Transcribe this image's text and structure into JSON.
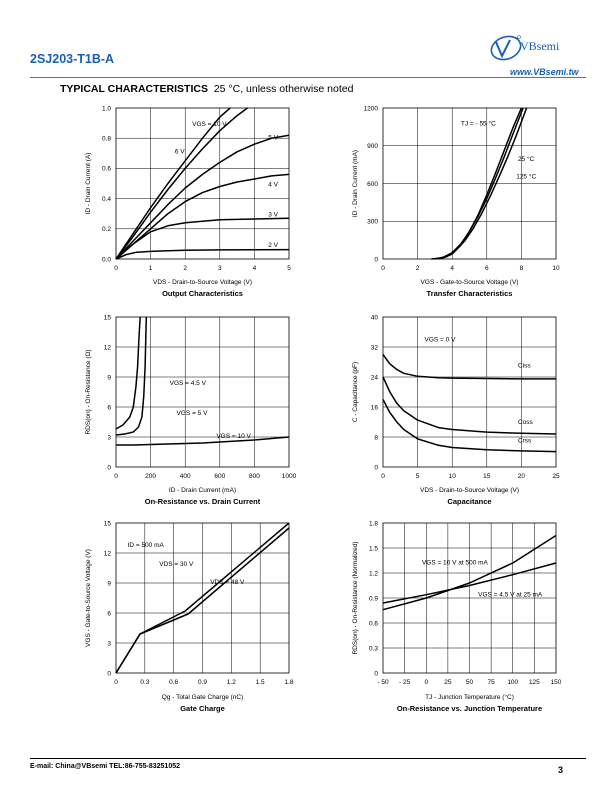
{
  "header": {
    "part_number": "2SJ203-T1B-A",
    "brand": "VBsemi",
    "website": "www.VBsemi.tw",
    "section_title": "TYPICAL CHARACTERISTICS",
    "section_note": "25 °C, unless otherwise noted"
  },
  "footer": {
    "contact": "E-mail:  China@VBsemi   TEL:86-755-83251052",
    "page_number": "3"
  },
  "chart_data": [
    {
      "id": "output",
      "type": "line",
      "title": "Output Characteristics",
      "xlabel": "VDS - Drain-to-Source Voltage (V)",
      "ylabel": "ID - Drain Current (A)",
      "xlim": [
        0,
        5
      ],
      "ylim": [
        0,
        1.0
      ],
      "xticks": [
        0,
        1,
        2,
        3,
        4,
        5
      ],
      "yticks": [
        0.0,
        0.2,
        0.4,
        0.6,
        0.8,
        1.0
      ],
      "ytick_labels": [
        "0.0",
        "0.2",
        "0.4",
        "0.6",
        "0.8",
        "1.0"
      ],
      "series": [
        {
          "name": "VGS = 10 V",
          "x": [
            0,
            0.5,
            1,
            1.5,
            2,
            2.5,
            3,
            3.3
          ],
          "y": [
            0,
            0.17,
            0.34,
            0.5,
            0.65,
            0.8,
            0.94,
            1.0
          ]
        },
        {
          "name": "6 V",
          "x": [
            0,
            0.5,
            1,
            1.5,
            2,
            2.5,
            3,
            3.5,
            3.8
          ],
          "y": [
            0,
            0.15,
            0.31,
            0.46,
            0.6,
            0.73,
            0.85,
            0.95,
            1.0
          ]
        },
        {
          "name": "5 V",
          "x": [
            0,
            0.5,
            1,
            1.5,
            2,
            2.5,
            3,
            3.5,
            4,
            4.5,
            5
          ],
          "y": [
            0,
            0.12,
            0.24,
            0.36,
            0.47,
            0.56,
            0.64,
            0.71,
            0.76,
            0.8,
            0.82
          ]
        },
        {
          "name": "4 V",
          "x": [
            0,
            0.5,
            1,
            1.5,
            2,
            2.5,
            3,
            3.5,
            4,
            4.5,
            5
          ],
          "y": [
            0,
            0.1,
            0.2,
            0.3,
            0.38,
            0.44,
            0.48,
            0.51,
            0.53,
            0.55,
            0.56
          ]
        },
        {
          "name": "3 V",
          "x": [
            0,
            0.5,
            1,
            1.5,
            2,
            2.5,
            3,
            4,
            5
          ],
          "y": [
            0,
            0.1,
            0.18,
            0.22,
            0.24,
            0.25,
            0.26,
            0.265,
            0.27
          ]
        },
        {
          "name": "2 V",
          "x": [
            0,
            0.3,
            0.6,
            1,
            1.5,
            2,
            3,
            5
          ],
          "y": [
            0,
            0.03,
            0.045,
            0.05,
            0.055,
            0.058,
            0.06,
            0.062
          ]
        }
      ],
      "annotations": [
        "VGS = 10 V",
        "6 V",
        "5 V",
        "4 V",
        "3 V",
        "2 V"
      ]
    },
    {
      "id": "transfer",
      "type": "line",
      "title": "Transfer Characteristics",
      "xlabel": "VGS - Gate-to-Source Voltage (V)",
      "ylabel": "ID - Drain Current (mA)",
      "xlim": [
        0,
        10
      ],
      "ylim": [
        0,
        1200
      ],
      "xticks": [
        0,
        2,
        4,
        6,
        8,
        10
      ],
      "yticks": [
        0,
        300,
        600,
        900,
        1200
      ],
      "ytick_labels": [
        "0",
        "300",
        "600",
        "900",
        "1200"
      ],
      "series": [
        {
          "name": "TJ = - 55 °C",
          "x": [
            2.8,
            3.5,
            4,
            4.5,
            5,
            5.5,
            6,
            6.5,
            7,
            7.5,
            8
          ],
          "y": [
            0,
            10,
            40,
            110,
            220,
            350,
            510,
            680,
            860,
            1040,
            1200
          ]
        },
        {
          "name": "25 °C",
          "x": [
            3,
            3.5,
            4,
            4.5,
            5,
            5.5,
            6,
            6.5,
            7,
            7.5,
            8.1
          ],
          "y": [
            0,
            15,
            50,
            120,
            220,
            340,
            480,
            640,
            810,
            990,
            1200
          ]
        },
        {
          "name": "125 °C",
          "x": [
            3.2,
            3.7,
            4.2,
            4.7,
            5.2,
            5.7,
            6.2,
            6.7,
            7.2,
            7.7,
            8.3
          ],
          "y": [
            0,
            20,
            70,
            140,
            240,
            360,
            500,
            650,
            810,
            980,
            1200
          ]
        }
      ],
      "annotations": [
        "TJ = - 55 °C",
        "25 °C",
        "125 °C"
      ]
    },
    {
      "id": "rdson_id",
      "type": "line",
      "title": "On-Resistance vs. Drain Current",
      "xlabel": "ID - Drain Current (mA)",
      "ylabel": "RDS(on) - On-Resistance (Ω)",
      "xlim": [
        0,
        1000
      ],
      "ylim": [
        0,
        15
      ],
      "xticks": [
        0,
        200,
        400,
        600,
        800,
        1000
      ],
      "yticks": [
        0,
        3,
        6,
        9,
        12,
        15
      ],
      "ytick_labels": [
        "0",
        "3",
        "6",
        "9",
        "12",
        "15"
      ],
      "series": [
        {
          "name": "VGS = 4.5 V",
          "x": [
            0,
            40,
            80,
            100,
            115,
            125,
            133,
            140
          ],
          "y": [
            3.8,
            4.2,
            5,
            6,
            8,
            10,
            13,
            15
          ]
        },
        {
          "name": "VGS = 5 V",
          "x": [
            0,
            50,
            100,
            130,
            150,
            160,
            168,
            175
          ],
          "y": [
            3.2,
            3.3,
            3.5,
            4,
            5,
            7,
            10,
            15
          ]
        },
        {
          "name": "VGS = 10 V",
          "x": [
            0,
            100,
            200,
            300,
            400,
            500,
            600,
            700,
            800,
            900,
            1000
          ],
          "y": [
            2.2,
            2.2,
            2.25,
            2.3,
            2.35,
            2.4,
            2.5,
            2.6,
            2.7,
            2.85,
            3.0
          ]
        }
      ],
      "annotations": [
        "VGS = 4.5 V",
        "VGS = 5 V",
        "VGS = 10 V"
      ]
    },
    {
      "id": "capacitance",
      "type": "line",
      "title": "Capacitance",
      "xlabel": "VDS - Drain-to-Source Voltage (V)",
      "ylabel": "C - Capacitance (pF)",
      "xlim": [
        0,
        25
      ],
      "ylim": [
        0,
        40
      ],
      "xticks": [
        0,
        5,
        10,
        15,
        20,
        25
      ],
      "yticks": [
        0,
        8,
        16,
        24,
        32,
        40
      ],
      "ytick_labels": [
        "0",
        "8",
        "16",
        "24",
        "32",
        "40"
      ],
      "series": [
        {
          "name": "Ciss",
          "x": [
            0,
            1,
            2,
            3,
            5,
            8,
            10,
            15,
            20,
            25
          ],
          "y": [
            30,
            27.5,
            26,
            25,
            24.2,
            23.8,
            23.7,
            23.6,
            23.5,
            23.5
          ]
        },
        {
          "name": "Coss",
          "x": [
            0,
            1,
            2,
            3,
            5,
            8,
            10,
            15,
            20,
            25
          ],
          "y": [
            24,
            20,
            17,
            15,
            12.5,
            10.5,
            10,
            9.3,
            9,
            8.8
          ]
        },
        {
          "name": "Crss",
          "x": [
            0,
            1,
            2,
            3,
            5,
            8,
            10,
            15,
            20,
            25
          ],
          "y": [
            18,
            14.5,
            12,
            10,
            7.5,
            5.8,
            5.2,
            4.6,
            4.3,
            4.1
          ]
        }
      ],
      "annotations": [
        "VGS = 0 V",
        "Ciss",
        "Coss",
        "Crss"
      ]
    },
    {
      "id": "gate_charge",
      "type": "line",
      "title": "Gate Charge",
      "xlabel": "Qg - Total Gate Charge (nC)",
      "ylabel": "VGS - Gate-to-Source Voltage (V)",
      "xlim": [
        0,
        1.8
      ],
      "ylim": [
        0,
        15
      ],
      "xticks": [
        0,
        0.3,
        0.6,
        0.9,
        1.2,
        1.5,
        1.8
      ],
      "yticks": [
        0,
        3,
        6,
        9,
        12,
        15
      ],
      "ytick_labels": [
        "0",
        "3",
        "6",
        "9",
        "12",
        "15"
      ],
      "series": [
        {
          "name": "VDS = 30 V",
          "x": [
            0,
            0.25,
            0.72,
            1.8
          ],
          "y": [
            0,
            3.9,
            6.2,
            15
          ]
        },
        {
          "name": "VDS = 48 V",
          "x": [
            0,
            0.25,
            0.75,
            1.8
          ],
          "y": [
            0,
            3.9,
            5.9,
            14.5
          ]
        }
      ],
      "annotations": [
        "ID = 500 mA",
        "VDS = 30 V",
        "VDS = 48 V"
      ]
    },
    {
      "id": "rdson_tj",
      "type": "line",
      "title": "On-Resistance vs. Junction Temperature",
      "xlabel": "TJ - Junction Temperature (°C)",
      "ylabel": "RDS(on) - On-Resistance (Normalized)",
      "xlim": [
        -50,
        150
      ],
      "ylim": [
        0,
        1.8
      ],
      "xticks": [
        -50,
        -25,
        0,
        25,
        50,
        75,
        100,
        125,
        150
      ],
      "xtick_labels": [
        "- 50",
        "- 25",
        "0",
        "25",
        "50",
        "75",
        "100",
        "125",
        "150"
      ],
      "yticks": [
        0,
        0.3,
        0.6,
        0.9,
        1.2,
        1.5,
        1.8
      ],
      "ytick_labels": [
        "0",
        "0.3",
        "0.6",
        "0.9",
        "1.2",
        "1.5",
        "1.8"
      ],
      "series": [
        {
          "name": "VGS = 10 V at 500 mA",
          "x": [
            -50,
            0,
            50,
            100,
            150
          ],
          "y": [
            0.76,
            0.9,
            1.08,
            1.32,
            1.65
          ]
        },
        {
          "name": "VGS = 4.5 V at 25 mA",
          "x": [
            -50,
            0,
            50,
            100,
            150
          ],
          "y": [
            0.84,
            0.94,
            1.05,
            1.18,
            1.32
          ]
        }
      ],
      "annotations": [
        "VGS = 10 V at 500 mA",
        "VGS = 4.5 V at 25 mA"
      ]
    }
  ]
}
